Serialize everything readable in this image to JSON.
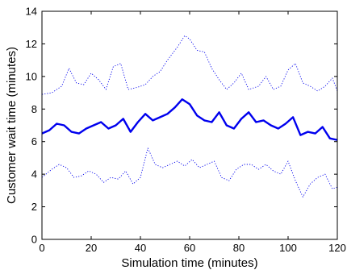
{
  "chart_data": {
    "type": "line",
    "title": "",
    "xlabel": "Simulation time (minutes)",
    "ylabel": "Customer wait time (minutes)",
    "xlim": [
      0,
      120
    ],
    "ylim": [
      0,
      14
    ],
    "xticks": [
      0,
      20,
      40,
      60,
      80,
      100,
      120
    ],
    "yticks": [
      0,
      2,
      4,
      6,
      8,
      10,
      12,
      14
    ],
    "grid": false,
    "legend": "none",
    "colors": {
      "series": "#0000ee",
      "axis": "#000000",
      "background": "#ffffff"
    },
    "series": [
      {
        "role": "upper bound",
        "style": "dotted",
        "x": [
          0,
          4,
          8,
          11,
          14,
          17,
          20,
          23,
          26,
          29,
          32,
          35,
          38,
          42,
          45,
          48,
          51,
          55,
          58,
          60,
          63,
          66,
          69,
          72,
          75,
          78,
          81,
          84,
          88,
          91,
          94,
          97,
          100,
          103,
          106,
          109,
          112,
          115,
          118,
          120
        ],
        "y": [
          8.9,
          9.0,
          9.4,
          10.5,
          9.6,
          9.5,
          10.2,
          9.8,
          9.2,
          10.6,
          10.8,
          9.2,
          9.3,
          9.5,
          10.0,
          10.3,
          11.0,
          11.8,
          12.5,
          12.3,
          11.6,
          11.5,
          10.5,
          9.8,
          9.2,
          9.6,
          10.2,
          9.2,
          9.4,
          10.0,
          9.2,
          9.4,
          10.4,
          10.8,
          9.6,
          9.4,
          9.1,
          9.4,
          9.9,
          9.1
        ]
      },
      {
        "role": "mean",
        "style": "solid",
        "x": [
          0,
          3,
          6,
          9,
          12,
          15,
          18,
          21,
          24,
          27,
          30,
          33,
          36,
          39,
          42,
          45,
          48,
          51,
          54,
          57,
          60,
          63,
          66,
          69,
          72,
          75,
          78,
          81,
          84,
          87,
          90,
          93,
          96,
          99,
          102,
          105,
          108,
          111,
          114,
          117,
          120
        ],
        "y": [
          6.5,
          6.7,
          7.1,
          7.0,
          6.6,
          6.5,
          6.8,
          7.0,
          7.2,
          6.8,
          7.0,
          7.4,
          6.6,
          7.2,
          7.7,
          7.3,
          7.5,
          7.7,
          8.1,
          8.6,
          8.3,
          7.6,
          7.3,
          7.2,
          7.8,
          7.0,
          6.8,
          7.4,
          7.8,
          7.2,
          7.3,
          7.0,
          6.8,
          7.1,
          7.5,
          6.4,
          6.6,
          6.5,
          6.9,
          6.2,
          6.1
        ]
      },
      {
        "role": "lower bound",
        "style": "dotted",
        "x": [
          0,
          4,
          7,
          10,
          13,
          16,
          19,
          22,
          25,
          28,
          31,
          34,
          37,
          40,
          43,
          46,
          49,
          52,
          55,
          58,
          61,
          64,
          67,
          70,
          73,
          76,
          79,
          82,
          85,
          88,
          91,
          94,
          97,
          100,
          103,
          106,
          109,
          112,
          115,
          118,
          120
        ],
        "y": [
          3.8,
          4.3,
          4.6,
          4.4,
          3.8,
          3.9,
          4.2,
          4.0,
          3.5,
          3.8,
          3.7,
          4.2,
          3.4,
          3.8,
          5.6,
          4.6,
          4.4,
          4.6,
          4.8,
          4.5,
          4.9,
          4.4,
          4.6,
          4.8,
          3.8,
          3.6,
          4.3,
          4.6,
          4.6,
          4.3,
          4.6,
          4.2,
          4.0,
          4.8,
          3.6,
          2.6,
          3.4,
          3.8,
          4.0,
          3.1,
          3.2
        ]
      }
    ]
  }
}
